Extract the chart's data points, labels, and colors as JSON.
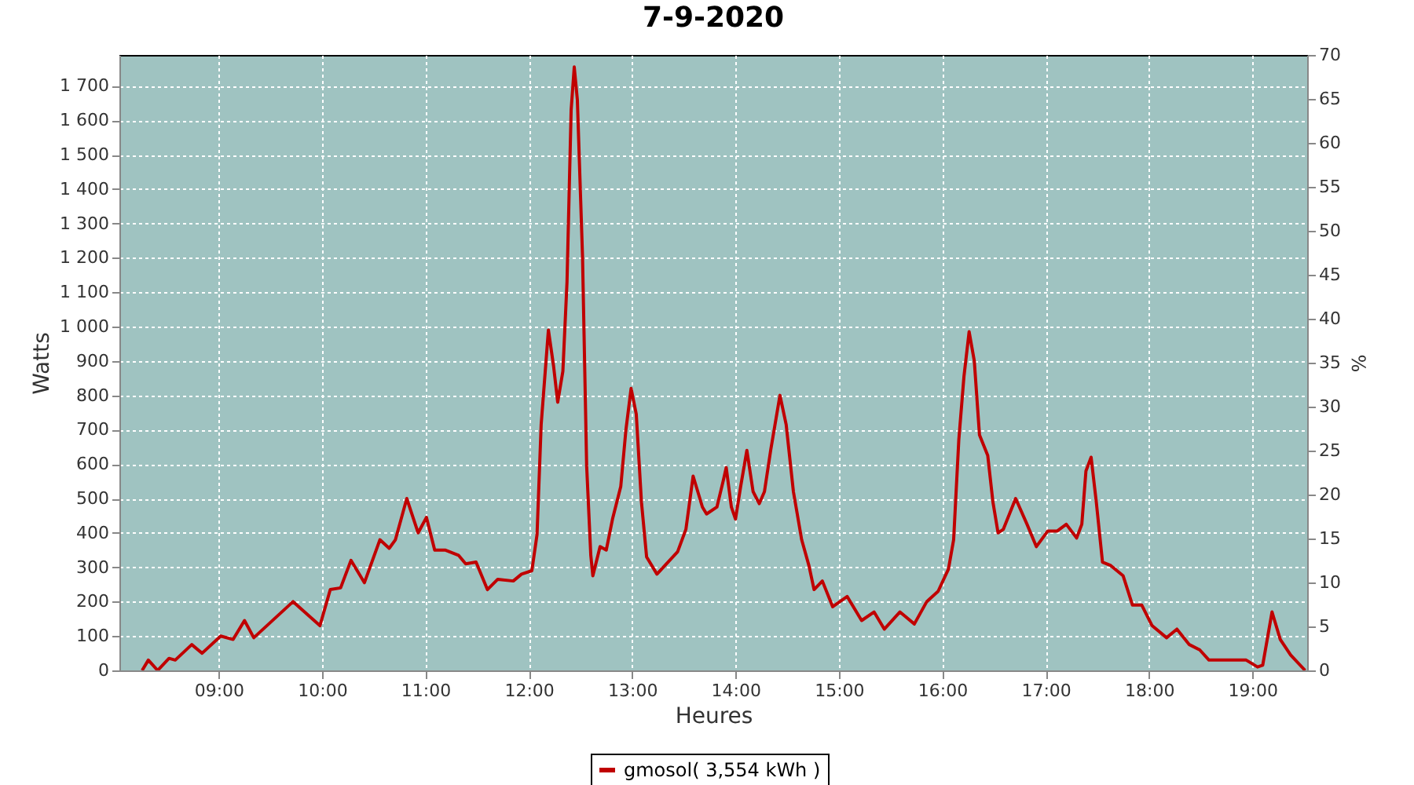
{
  "chart_data": {
    "type": "line",
    "title": "7-9-2020",
    "xlabel": "Heures",
    "ylabel": "Watts",
    "y2label": "%",
    "xlim": [
      8.04,
      19.53
    ],
    "xticks": [
      {
        "value": 9,
        "label": "09:00"
      },
      {
        "value": 10,
        "label": "10:00"
      },
      {
        "value": 11,
        "label": "11:00"
      },
      {
        "value": 12,
        "label": "12:00"
      },
      {
        "value": 13,
        "label": "13:00"
      },
      {
        "value": 14,
        "label": "14:00"
      },
      {
        "value": 15,
        "label": "15:00"
      },
      {
        "value": 16,
        "label": "16:00"
      },
      {
        "value": 17,
        "label": "17:00"
      },
      {
        "value": 18,
        "label": "18:00"
      },
      {
        "value": 19,
        "label": "19:00"
      }
    ],
    "ylim": [
      0,
      1790
    ],
    "yticks": [
      0,
      100,
      200,
      300,
      400,
      500,
      600,
      700,
      800,
      900,
      {
        "value": 1000,
        "label": "1 000"
      },
      {
        "value": 1100,
        "label": "1 100"
      },
      {
        "value": 1200,
        "label": "1 200"
      },
      {
        "value": 1300,
        "label": "1 300"
      },
      {
        "value": 1400,
        "label": "1 400"
      },
      {
        "value": 1500,
        "label": "1 500"
      },
      {
        "value": 1600,
        "label": "1 600"
      },
      {
        "value": 1700,
        "label": "1 700"
      }
    ],
    "y2lim": [
      0,
      70
    ],
    "y2ticks": [
      0,
      5,
      10,
      15,
      20,
      25,
      30,
      35,
      40,
      45,
      50,
      55,
      60,
      65,
      70
    ],
    "grid": true,
    "legend": "bottom",
    "line_style": "solid",
    "x": [
      8.26,
      8.32,
      8.41,
      8.52,
      8.58,
      8.74,
      8.84,
      9.02,
      9.14,
      9.25,
      9.34,
      9.72,
      9.98,
      10.08,
      10.18,
      10.28,
      10.41,
      10.56,
      10.65,
      10.71,
      10.82,
      10.93,
      11.01,
      11.09,
      11.19,
      11.32,
      11.39,
      11.49,
      11.6,
      11.7,
      11.85,
      11.93,
      12.03,
      12.08,
      12.12,
      12.19,
      12.24,
      12.28,
      12.33,
      12.37,
      12.41,
      12.44,
      12.47,
      12.52,
      12.56,
      12.6,
      12.62,
      12.69,
      12.75,
      12.81,
      12.89,
      12.94,
      12.99,
      13.04,
      13.09,
      13.14,
      13.24,
      13.44,
      13.52,
      13.59,
      13.68,
      13.72,
      13.82,
      13.88,
      13.91,
      13.96,
      14.0,
      14.05,
      14.11,
      14.17,
      14.23,
      14.28,
      14.34,
      14.43,
      14.49,
      14.56,
      14.64,
      14.71,
      14.76,
      14.84,
      14.94,
      15.08,
      15.22,
      15.34,
      15.44,
      15.59,
      15.73,
      15.85,
      15.96,
      16.06,
      16.11,
      16.16,
      16.21,
      16.26,
      16.31,
      16.36,
      16.44,
      16.49,
      16.54,
      16.59,
      16.71,
      16.82,
      16.91,
      17.02,
      17.11,
      17.2,
      17.3,
      17.35,
      17.39,
      17.44,
      17.49,
      17.55,
      17.63,
      17.75,
      17.84,
      17.93,
      18.03,
      18.17,
      18.27,
      18.39,
      18.49,
      18.58,
      18.94,
      19.05,
      19.1,
      19.19,
      19.27,
      19.37,
      19.51
    ],
    "series": [
      {
        "name": "gmosol( 3,554 kWh )",
        "color": "#c00000",
        "values": [
          0,
          30,
          0,
          35,
          30,
          75,
          50,
          100,
          90,
          145,
          95,
          200,
          130,
          235,
          240,
          320,
          255,
          380,
          355,
          380,
          500,
          400,
          445,
          350,
          350,
          335,
          310,
          315,
          235,
          265,
          260,
          280,
          290,
          395,
          715,
          990,
          885,
          780,
          870,
          1130,
          1630,
          1755,
          1660,
          1205,
          595,
          335,
          275,
          360,
          350,
          440,
          535,
          700,
          820,
          745,
          490,
          330,
          280,
          345,
          410,
          565,
          475,
          455,
          475,
          550,
          590,
          475,
          440,
          535,
          640,
          520,
          485,
          520,
          640,
          800,
          715,
          520,
          380,
          305,
          235,
          260,
          185,
          215,
          145,
          170,
          120,
          170,
          135,
          200,
          230,
          295,
          380,
          670,
          855,
          985,
          900,
          685,
          625,
          490,
          400,
          410,
          500,
          425,
          360,
          405,
          405,
          425,
          385,
          425,
          580,
          620,
          490,
          315,
          305,
          275,
          190,
          190,
          130,
          95,
          120,
          75,
          60,
          30,
          30,
          10,
          15,
          170,
          90,
          45,
          0
        ]
      }
    ]
  }
}
